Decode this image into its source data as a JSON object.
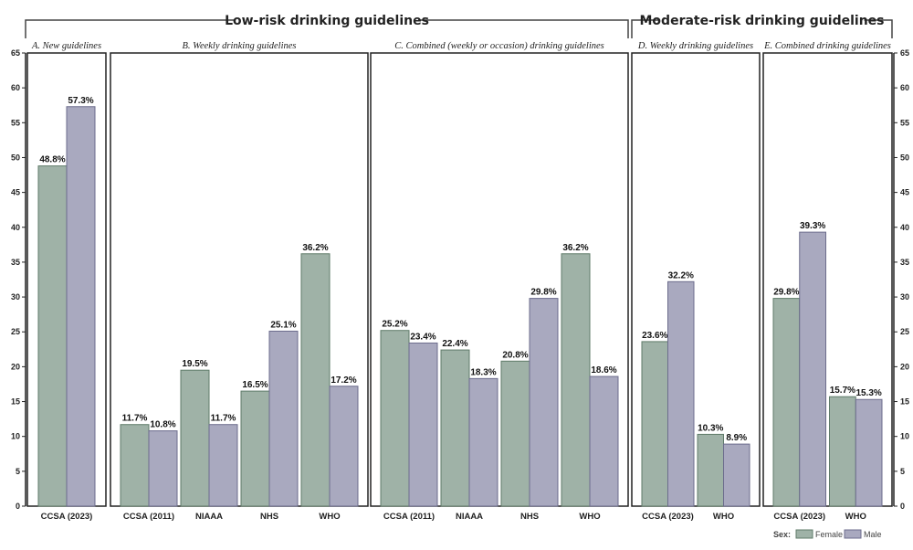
{
  "chart_data": {
    "type": "bar",
    "ylim": [
      0,
      65
    ],
    "yticks": [
      0,
      5,
      10,
      15,
      20,
      25,
      30,
      35,
      40,
      45,
      50,
      55,
      60,
      65
    ],
    "groups": [
      {
        "title": "Low-risk drinking guidelines",
        "panels": [
          0,
          1,
          2
        ]
      },
      {
        "title": "Moderate-risk drinking guidelines",
        "panels": [
          3,
          4
        ]
      }
    ],
    "panels": [
      {
        "title": "A. New guidelines",
        "categories": [
          "CCSA (2023)"
        ],
        "female": [
          48.8
        ],
        "male": [
          57.3
        ]
      },
      {
        "title": "B. Weekly drinking guidelines",
        "categories": [
          "CCSA (2011)",
          "NIAAA",
          "NHS",
          "WHO"
        ],
        "female": [
          11.7,
          19.5,
          16.5,
          36.2
        ],
        "male": [
          10.8,
          11.7,
          25.1,
          17.2
        ]
      },
      {
        "title": "C. Combined (weekly or occasion) drinking guidelines",
        "categories": [
          "CCSA (2011)",
          "NIAAA",
          "NHS",
          "WHO"
        ],
        "female": [
          25.2,
          22.4,
          20.8,
          36.2
        ],
        "male": [
          23.4,
          18.3,
          29.8,
          18.6
        ]
      },
      {
        "title": "D. Weekly drinking guidelines",
        "categories": [
          "CCSA (2023)",
          "WHO"
        ],
        "female": [
          23.6,
          10.3
        ],
        "male": [
          32.2,
          8.9
        ]
      },
      {
        "title": "E. Combined drinking guidelines",
        "categories": [
          "CCSA (2023)",
          "WHO"
        ],
        "female": [
          29.8,
          15.7
        ],
        "male": [
          39.3,
          15.3
        ]
      }
    ],
    "legend": {
      "title": "Sex:",
      "position": "bottom-right",
      "series": [
        {
          "name": "Female",
          "color": "#9fb2a7"
        },
        {
          "name": "Male",
          "color": "#a9a9bf"
        }
      ]
    },
    "value_suffix": "%"
  }
}
